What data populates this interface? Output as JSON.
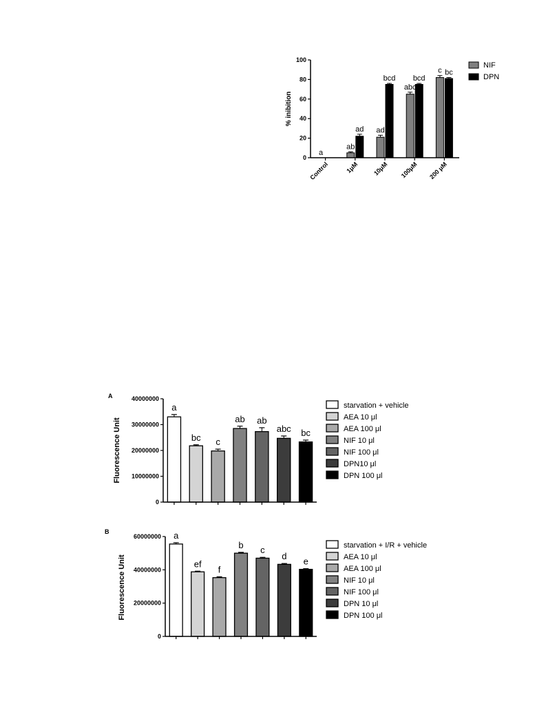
{
  "chart_data": [
    {
      "type": "bar",
      "ylabel": "% inibition",
      "xlabel": "",
      "ylim": [
        0,
        100
      ],
      "yticks": [
        0,
        20,
        40,
        60,
        80,
        100
      ],
      "categories": [
        "Control",
        "1μM",
        "10μM",
        "100μM",
        "200 μM"
      ],
      "series": [
        {
          "name": "NIF",
          "color": "#808080",
          "values": [
            0,
            5,
            21,
            65,
            82
          ],
          "errors": [
            0,
            1,
            2,
            2,
            2
          ],
          "labels": [
            "a",
            "ab",
            "ad",
            "abc",
            "c"
          ]
        },
        {
          "name": "DPN",
          "color": "#000000",
          "values": [
            0,
            22,
            75,
            75,
            81
          ],
          "errors": [
            0,
            2,
            1,
            1,
            1
          ],
          "labels": [
            "",
            "ad",
            "bcd",
            "bcd",
            "bc"
          ]
        }
      ],
      "legend": "top-right"
    },
    {
      "type": "bar",
      "panel": "A",
      "ylabel": "Fluorescence Unit",
      "xlabel": "",
      "ylim": [
        0,
        40000000
      ],
      "yticks": [
        "0",
        "10000000",
        "20000000",
        "30000000",
        "40000000"
      ],
      "categories": [
        "starvation + vehicle",
        "AEA 10 μl",
        "AEA  100 μl",
        "NIF 10 μl",
        "NIF 100 μl",
        "DPN10 μl",
        "DPN 100 μl"
      ],
      "values": [
        33000000,
        21800000,
        19800000,
        28500000,
        27300000,
        24700000,
        23300000
      ],
      "errors": [
        900000,
        400000,
        700000,
        900000,
        1500000,
        900000,
        700000
      ],
      "labels": [
        "a",
        "bc",
        "c",
        "ab",
        "ab",
        "abc",
        "bc"
      ],
      "colors": [
        "#ffffff",
        "#d4d4d4",
        "#a9a9a9",
        "#818181",
        "#646464",
        "#3c3c3c",
        "#000000"
      ],
      "legend": "right"
    },
    {
      "type": "bar",
      "panel": "B",
      "ylabel": "Fluorescence Unit",
      "xlabel": "",
      "ylim": [
        0,
        60000000
      ],
      "yticks": [
        "0",
        "20000000",
        "40000000",
        "60000000"
      ],
      "categories": [
        "starvation + I/R + vehicle",
        "AEA 10 μl",
        "AEA  100 μl",
        "NIF 10 μl",
        "NIF 100 μl",
        "DPN  10 μl",
        "DPN 100 μl"
      ],
      "values": [
        55500000,
        38800000,
        35300000,
        50000000,
        47000000,
        43300000,
        40300000
      ],
      "errors": [
        800000,
        400000,
        500000,
        500000,
        500000,
        500000,
        400000
      ],
      "labels": [
        "a",
        "ef",
        "f",
        "b",
        "c",
        "d",
        "e"
      ],
      "colors": [
        "#ffffff",
        "#d4d4d4",
        "#a9a9a9",
        "#818181",
        "#646464",
        "#3c3c3c",
        "#000000"
      ],
      "legend": "right"
    }
  ]
}
